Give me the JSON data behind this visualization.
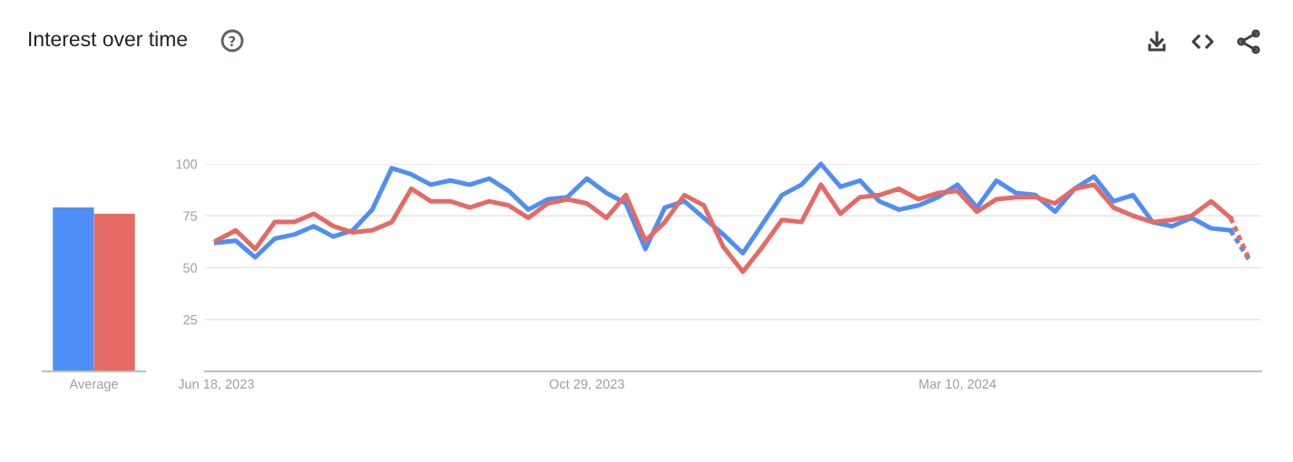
{
  "chart_data": [
    {
      "type": "bar",
      "title": "Interest over time",
      "categories": [
        "Average"
      ],
      "ylim": [
        0,
        100
      ],
      "tick_labels": "x",
      "grid": false,
      "series": [
        {
          "color": "#4e8ef7",
          "values": [
            79
          ]
        },
        {
          "color": "#e56a63",
          "values": [
            76
          ]
        }
      ]
    },
    {
      "type": "line",
      "grid": "y",
      "marker": "none",
      "line_style": "solid",
      "x": [
        "2023-06-18",
        "2023-06-25",
        "2023-07-02",
        "2023-07-09",
        "2023-07-16",
        "2023-07-23",
        "2023-07-30",
        "2023-08-06",
        "2023-08-13",
        "2023-08-20",
        "2023-08-27",
        "2023-09-03",
        "2023-09-10",
        "2023-09-17",
        "2023-09-24",
        "2023-10-01",
        "2023-10-08",
        "2023-10-15",
        "2023-10-22",
        "2023-10-29",
        "2023-11-05",
        "2023-11-12",
        "2023-11-19",
        "2023-11-26",
        "2023-12-03",
        "2023-12-10",
        "2023-12-17",
        "2023-12-24",
        "2023-12-31",
        "2024-01-07",
        "2024-01-14",
        "2024-01-21",
        "2024-01-28",
        "2024-02-04",
        "2024-02-11",
        "2024-02-18",
        "2024-02-25",
        "2024-03-03",
        "2024-03-10",
        "2024-03-17",
        "2024-03-24",
        "2024-03-31",
        "2024-04-07",
        "2024-04-14",
        "2024-04-21",
        "2024-04-28",
        "2024-05-05",
        "2024-05-12",
        "2024-05-19",
        "2024-05-26",
        "2024-06-02",
        "2024-06-09",
        "2024-06-16",
        "2024-06-23"
      ],
      "xlim": [
        "2023-06-14",
        "2024-06-27"
      ],
      "xticks": [
        {
          "value": "2023-06-18",
          "label": "Jun 18, 2023"
        },
        {
          "value": "2023-10-29",
          "label": "Oct 29, 2023"
        },
        {
          "value": "2024-03-10",
          "label": "Mar 10, 2024"
        }
      ],
      "ylim": [
        0,
        100
      ],
      "yticks": [
        {
          "value": 0,
          "label": null
        },
        25,
        50,
        75,
        100
      ],
      "series": [
        {
          "color": "#4e8ef7",
          "values": [
            62,
            63,
            55,
            64,
            66,
            70,
            65,
            68,
            78,
            98,
            95,
            90,
            92,
            90,
            93,
            87,
            78,
            83,
            84,
            93,
            86,
            81,
            59,
            79,
            82,
            74,
            66,
            57,
            71,
            85,
            90,
            100,
            89,
            92,
            82,
            78,
            80,
            84,
            90,
            79,
            92,
            86,
            85,
            77,
            88,
            94,
            82,
            85,
            72,
            70,
            74,
            69,
            68,
            null
          ]
        },
        {
          "color": "#e56a63",
          "values": [
            63,
            68,
            59,
            72,
            72,
            76,
            70,
            67,
            68,
            72,
            88,
            82,
            82,
            79,
            82,
            80,
            74,
            81,
            83,
            81,
            74,
            85,
            63,
            72,
            85,
            80,
            60,
            48,
            60,
            73,
            72,
            90,
            76,
            84,
            85,
            88,
            83,
            86,
            87,
            77,
            83,
            84,
            84,
            81,
            88,
            90,
            79,
            75,
            72,
            73,
            75,
            82,
            74,
            null
          ]
        },
        {
          "color": "#4e8ef7",
          "line_style": "dotted",
          "values": [
            null,
            null,
            null,
            null,
            null,
            null,
            null,
            null,
            null,
            null,
            null,
            null,
            null,
            null,
            null,
            null,
            null,
            null,
            null,
            null,
            null,
            null,
            null,
            null,
            null,
            null,
            null,
            null,
            null,
            null,
            null,
            null,
            null,
            null,
            null,
            null,
            null,
            null,
            null,
            null,
            null,
            null,
            null,
            null,
            null,
            null,
            null,
            null,
            null,
            null,
            null,
            null,
            68,
            53
          ]
        },
        {
          "color": "#e56a63",
          "line_style": "dotted",
          "values": [
            null,
            null,
            null,
            null,
            null,
            null,
            null,
            null,
            null,
            null,
            null,
            null,
            null,
            null,
            null,
            null,
            null,
            null,
            null,
            null,
            null,
            null,
            null,
            null,
            null,
            null,
            null,
            null,
            null,
            null,
            null,
            null,
            null,
            null,
            null,
            null,
            null,
            null,
            null,
            null,
            null,
            null,
            null,
            null,
            null,
            null,
            null,
            null,
            null,
            null,
            null,
            null,
            74,
            53
          ]
        }
      ]
    }
  ]
}
